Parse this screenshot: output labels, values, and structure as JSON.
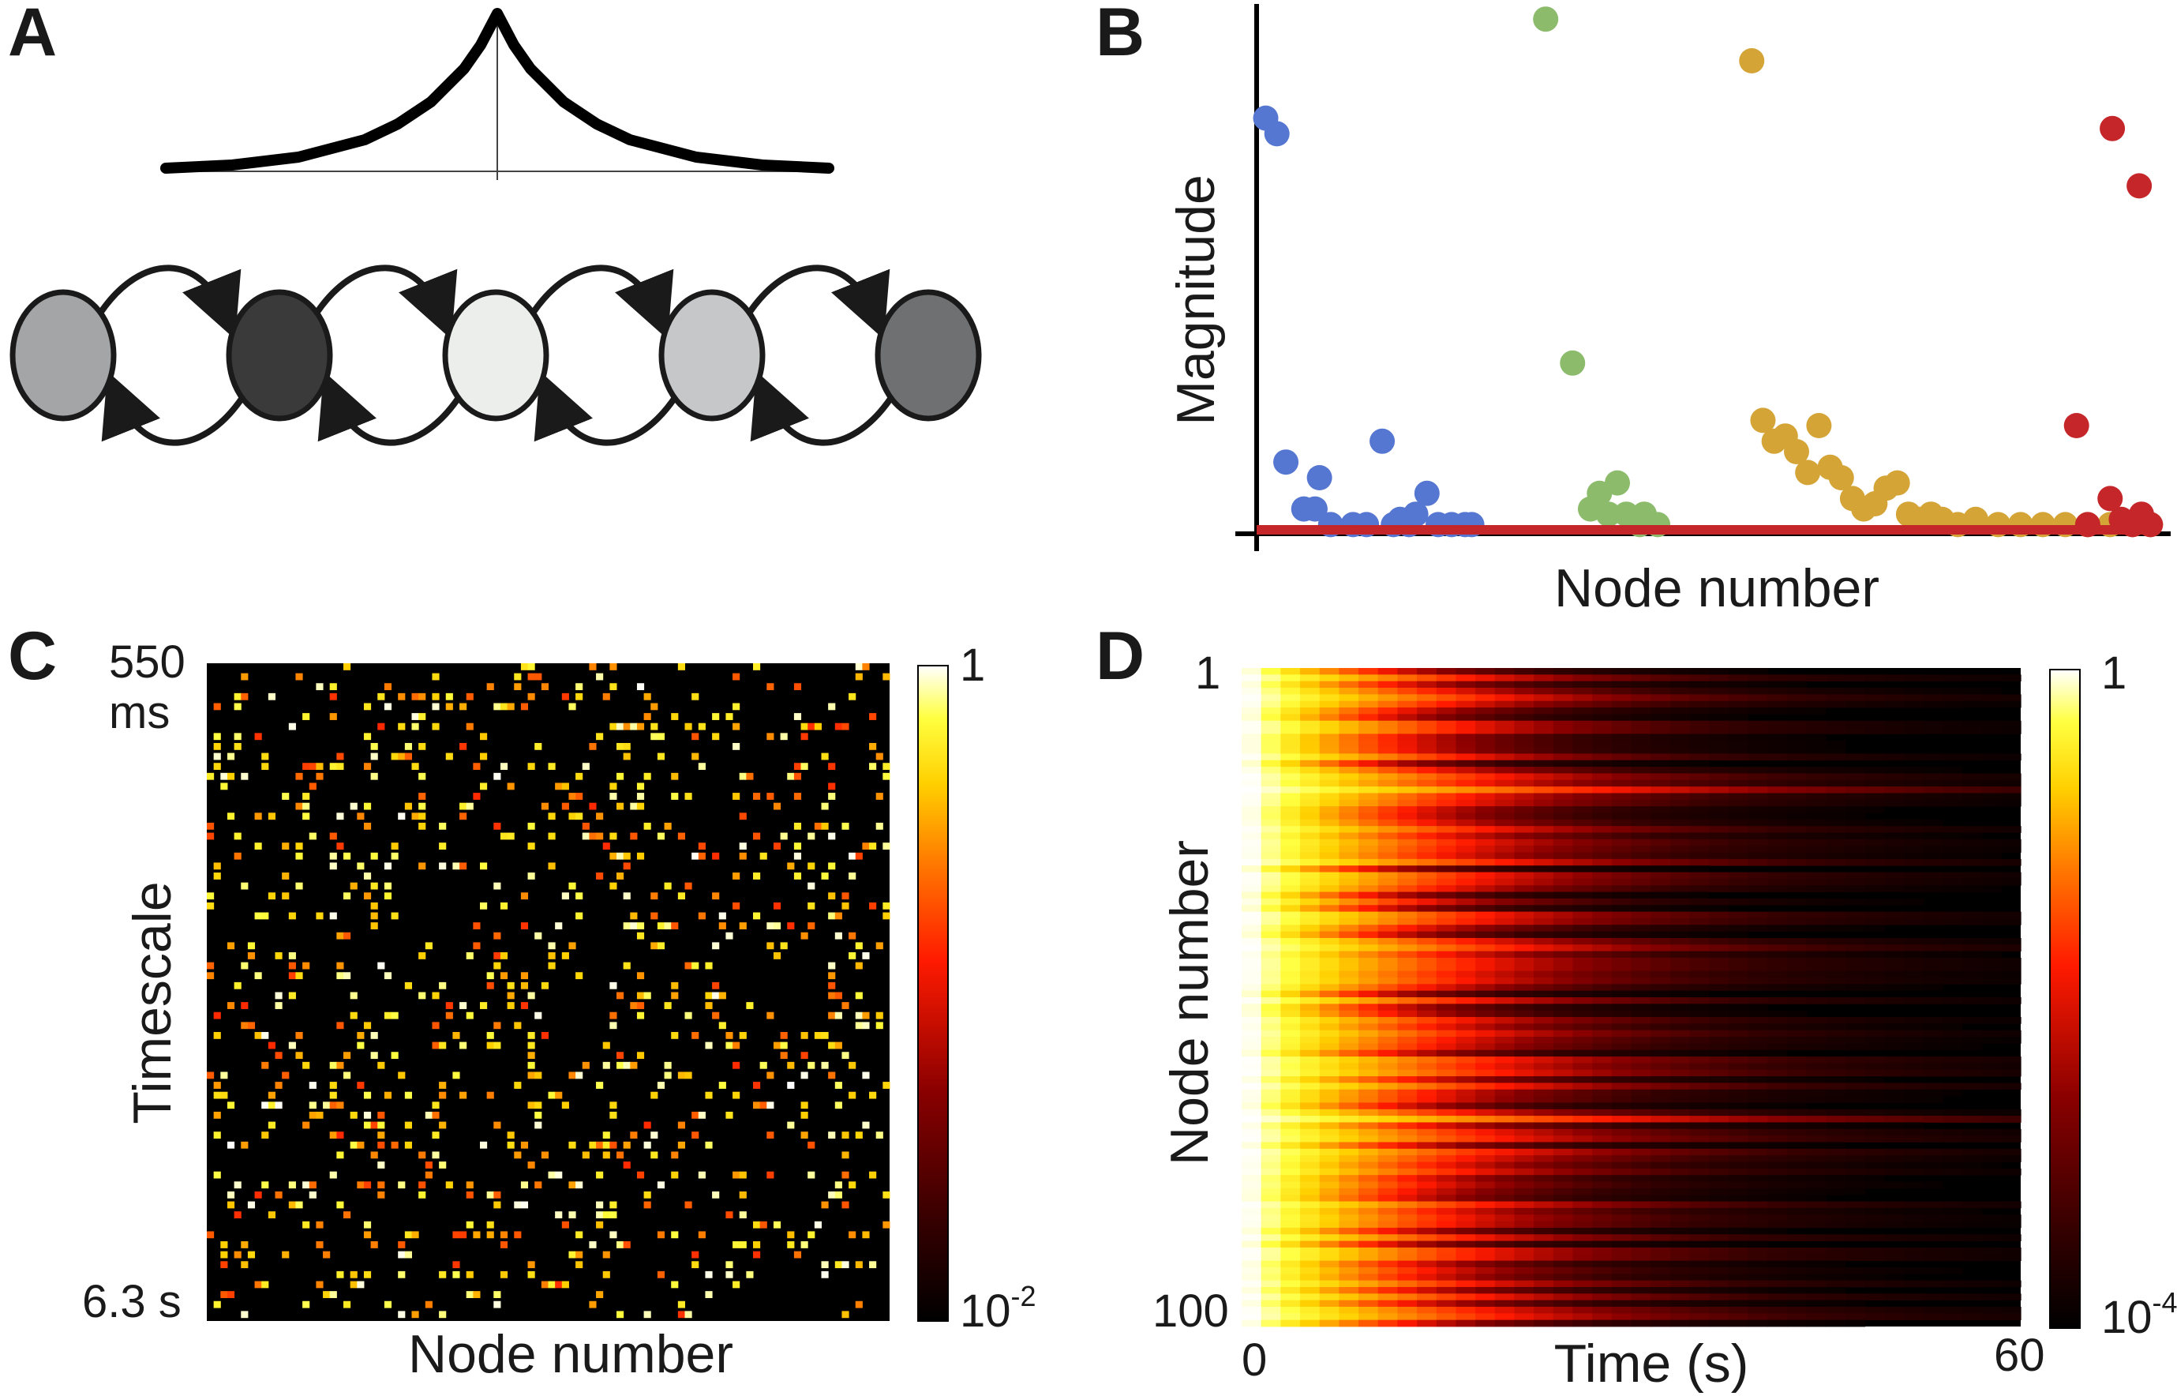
{
  "panel_labels": [
    "A",
    "B",
    "C",
    "D"
  ],
  "colors": {
    "node_fill": [
      "#a4a5a7",
      "#3a3a3a",
      "#eceeec",
      "#c6c7c9",
      "#6f7072"
    ],
    "cluster_blue": "#5576d1",
    "cluster_green": "#8bbb6b",
    "cluster_gold": "#d4a437",
    "cluster_red": "#c4262a",
    "heat_scale": [
      "#000000",
      "#350000",
      "#8a0000",
      "#ff1a00",
      "#ff7a00",
      "#ffd000",
      "#ffff40",
      "#ffffff"
    ]
  },
  "chart_data": [
    {
      "panel": "A",
      "type": "line",
      "description_shape": "laplacian-peak",
      "x": [
        -1,
        -0.8,
        -0.6,
        -0.4,
        -0.3,
        -0.2,
        -0.1,
        -0.05,
        0,
        0.05,
        0.1,
        0.2,
        0.3,
        0.4,
        0.6,
        0.8,
        1
      ],
      "y": [
        0.02,
        0.04,
        0.09,
        0.2,
        0.3,
        0.44,
        0.65,
        0.8,
        1.0,
        0.8,
        0.65,
        0.44,
        0.3,
        0.2,
        0.09,
        0.04,
        0.02
      ],
      "chain_nodes": 5
    },
    {
      "panel": "B",
      "type": "scatter",
      "ylabel": "Magnitude",
      "xlabel": "Node number",
      "xlim": [
        0,
        400
      ],
      "ylim": [
        0,
        100
      ],
      "series": [
        {
          "color": "cluster_blue",
          "x": [
            3,
            8,
            12,
            20,
            25,
            27,
            32,
            42,
            48,
            55,
            60,
            63,
            67,
            70,
            75,
            80,
            86,
            92,
            95
          ],
          "y": [
            79,
            76,
            13,
            4,
            4,
            10,
            1,
            1,
            1,
            17,
            1,
            2,
            1,
            3,
            7,
            1,
            1,
            1,
            1
          ]
        },
        {
          "color": "cluster_green",
          "x": [
            128,
            140,
            148,
            152,
            156,
            160,
            164,
            170,
            172,
            178
          ],
          "y": [
            98,
            32,
            4,
            7,
            3,
            9,
            3,
            1,
            3,
            1
          ]
        },
        {
          "color": "cluster_gold",
          "x": [
            220,
            225,
            230,
            235,
            240,
            245,
            250,
            255,
            260,
            265,
            270,
            275,
            280,
            285,
            290,
            295,
            300,
            305,
            312,
            320,
            330,
            340,
            350,
            360,
            370,
            380,
            390,
            398
          ],
          "y": [
            90,
            21,
            17,
            18,
            15,
            11,
            20,
            12,
            10,
            6,
            4,
            5,
            8,
            9,
            3,
            2,
            3,
            2,
            1,
            2,
            1,
            1,
            1,
            1,
            1,
            1,
            1,
            1
          ]
        },
        {
          "color": "cluster_red",
          "x": [
            365,
            370,
            380,
            385,
            390,
            394,
            398
          ],
          "y": [
            20,
            1,
            6,
            2,
            1,
            3,
            1
          ]
        }
      ],
      "extra_series_red_top": {
        "x": [
          381,
          393
        ],
        "y": [
          77,
          66
        ]
      }
    },
    {
      "panel": "C",
      "type": "heatmap",
      "xlabel": "Node number",
      "ylabel": "Timescale",
      "y_top_label": "550",
      "y_top_unit": "ms",
      "y_bottom_label": "6.3 s",
      "colorbar_max": "1",
      "colorbar_min": "10",
      "colorbar_min_exp": "-2",
      "rows": 66,
      "cols": 100,
      "density": 0.13
    },
    {
      "panel": "D",
      "type": "heatmap",
      "xlabel": "Time (s)",
      "ylabel": "Node number",
      "x_start": "0",
      "x_end": "60",
      "y_start": "1",
      "y_end": "100",
      "colorbar_max": "1",
      "colorbar_min": "10",
      "colorbar_min_exp": "-4",
      "rows": 100,
      "time_min": 0,
      "time_max": 60
    }
  ]
}
